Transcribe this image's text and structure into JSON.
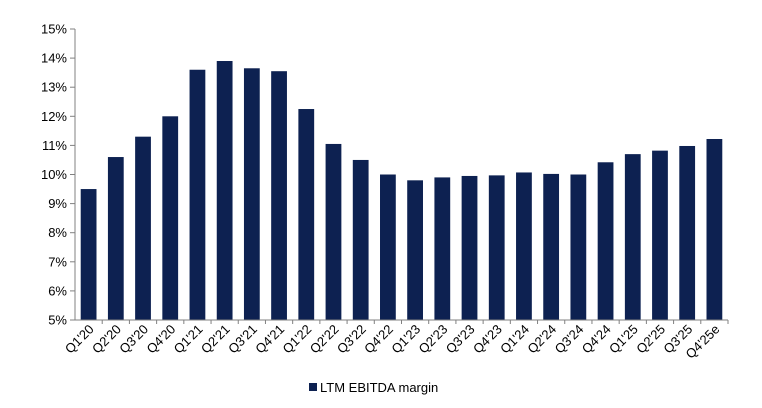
{
  "chart_data": {
    "type": "bar",
    "categories": [
      "Q1'20",
      "Q2'20",
      "Q3'20",
      "Q4'20",
      "Q1'21",
      "Q2'21",
      "Q3'21",
      "Q4'21",
      "Q1'22",
      "Q2'22",
      "Q3'22",
      "Q4'22",
      "Q1'23",
      "Q2'23",
      "Q3'23",
      "Q4'23",
      "Q1'24",
      "Q2'24",
      "Q3'24",
      "Q4'24",
      "Q1'25",
      "Q2'25",
      "Q3'25",
      "Q4'25e"
    ],
    "series": [
      {
        "name": "LTM EBITDA margin",
        "values": [
          9.5,
          10.6,
          11.3,
          12.0,
          13.6,
          13.9,
          13.65,
          13.55,
          12.25,
          11.05,
          10.5,
          10.0,
          9.8,
          9.9,
          9.95,
          9.97,
          10.07,
          10.02,
          10.0,
          10.42,
          10.7,
          10.82,
          10.98,
          11.22
        ],
        "color": "#0d2151"
      }
    ],
    "yticks": [
      "5%",
      "6%",
      "7%",
      "8%",
      "9%",
      "10%",
      "11%",
      "12%",
      "13%",
      "14%",
      "15%"
    ],
    "ylim": [
      5,
      15
    ],
    "grid": false,
    "legend_position": "bottom-center",
    "title": "",
    "xlabel": "",
    "ylabel": ""
  }
}
